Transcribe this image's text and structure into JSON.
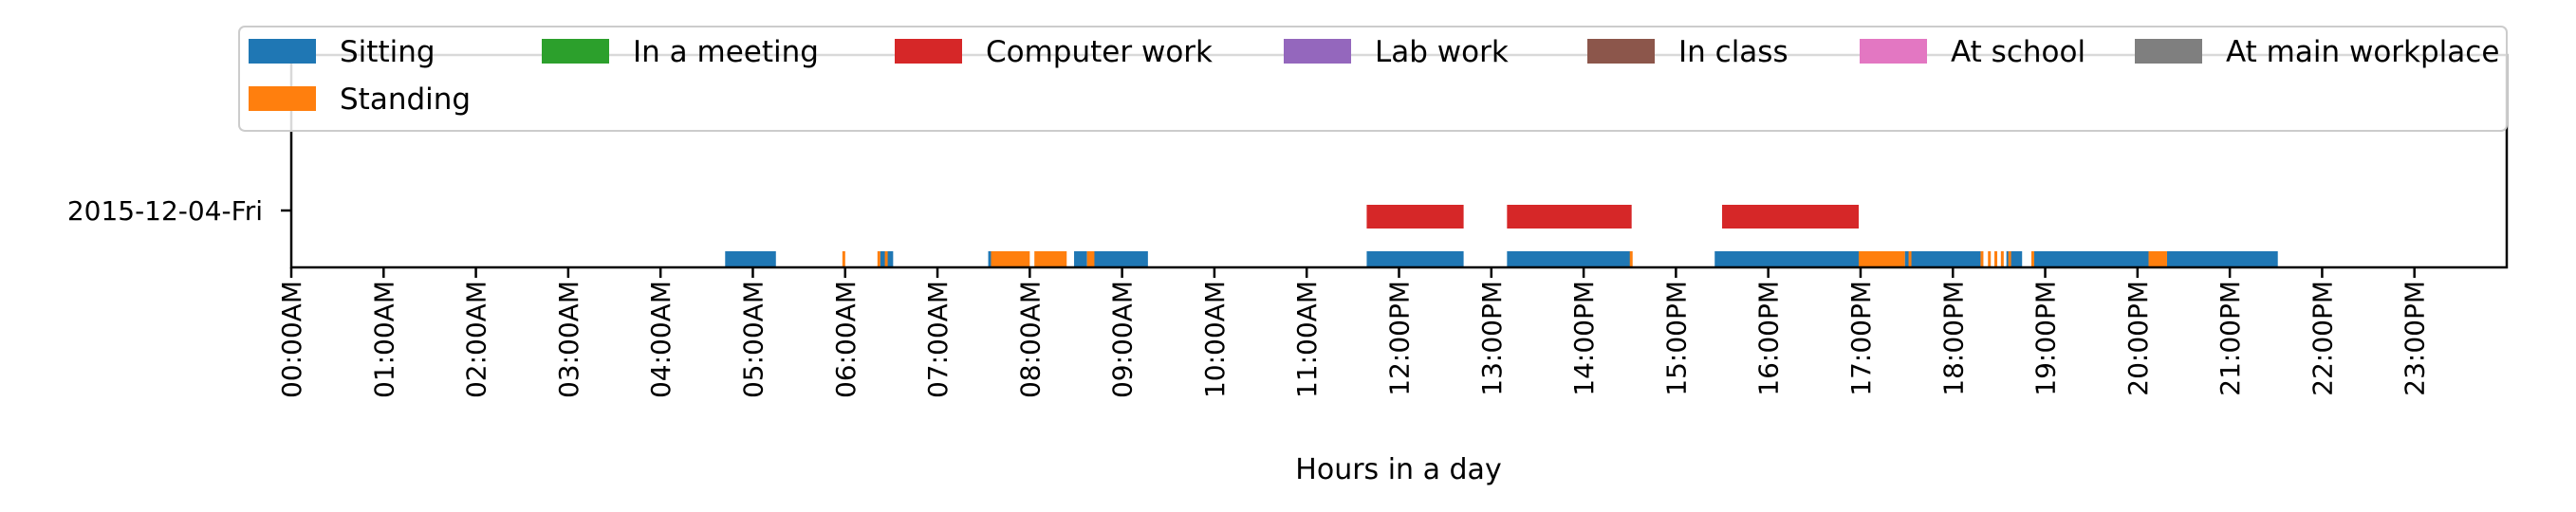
{
  "chart_data": {
    "type": "bar",
    "xlabel": "Hours in a day",
    "ylabel": "",
    "xlim": [
      0,
      24
    ],
    "x_ticks": [
      "00:00AM",
      "01:00AM",
      "02:00AM",
      "03:00AM",
      "04:00AM",
      "05:00AM",
      "06:00AM",
      "07:00AM",
      "08:00AM",
      "09:00AM",
      "10:00AM",
      "11:00AM",
      "12:00PM",
      "13:00PM",
      "14:00PM",
      "15:00PM",
      "16:00PM",
      "17:00PM",
      "18:00PM",
      "19:00PM",
      "20:00PM",
      "21:00PM",
      "22:00PM",
      "23:00PM"
    ],
    "y_categories": [
      "2015-12-04-Fri"
    ],
    "grid": false,
    "legend_placement": "top",
    "legend": [
      {
        "name": "Sitting",
        "color": "#1f77b4"
      },
      {
        "name": "In a meeting",
        "color": "#2ca02c"
      },
      {
        "name": "Computer work",
        "color": "#d62728"
      },
      {
        "name": "Lab work",
        "color": "#9467bd"
      },
      {
        "name": "In class",
        "color": "#8c564b"
      },
      {
        "name": "At school",
        "color": "#e377c2"
      },
      {
        "name": "At main workplace",
        "color": "#7f7f7f"
      },
      {
        "name": "Standing",
        "color": "#ff7f0e"
      }
    ],
    "series": [
      {
        "name": "Sitting",
        "row": 0,
        "intervals": [
          [
            4.7,
            5.25
          ],
          [
            6.38,
            6.52
          ],
          [
            7.55,
            7.58
          ],
          [
            8.48,
            8.62
          ],
          [
            8.65,
            9.28
          ],
          [
            11.65,
            12.7
          ],
          [
            13.17,
            14.52
          ],
          [
            15.42,
            16.98
          ],
          [
            17.48,
            18.3
          ],
          [
            18.58,
            18.75
          ],
          [
            18.88,
            20.12
          ],
          [
            20.32,
            21.52
          ]
        ]
      },
      {
        "name": "Standing",
        "row": 0,
        "intervals": [
          [
            5.97,
            6.0
          ],
          [
            6.35,
            6.38
          ],
          [
            6.43,
            6.45
          ],
          [
            7.58,
            8.0
          ],
          [
            8.05,
            8.4
          ],
          [
            8.62,
            8.7
          ],
          [
            14.5,
            14.53
          ],
          [
            16.98,
            17.48
          ],
          [
            17.52,
            17.55
          ],
          [
            18.3,
            18.33
          ],
          [
            18.38,
            18.41
          ],
          [
            18.45,
            18.48
          ],
          [
            18.52,
            18.55
          ],
          [
            18.6,
            18.62
          ],
          [
            18.85,
            18.88
          ],
          [
            20.12,
            20.32
          ]
        ]
      },
      {
        "name": "Computer work",
        "row": 1,
        "intervals": [
          [
            11.65,
            12.7
          ],
          [
            13.17,
            14.52
          ],
          [
            15.5,
            16.98
          ]
        ]
      },
      {
        "name": "In a meeting",
        "row": 1,
        "intervals": []
      },
      {
        "name": "Lab work",
        "row": 1,
        "intervals": []
      },
      {
        "name": "In class",
        "row": 1,
        "intervals": []
      },
      {
        "name": "At school",
        "row": 1,
        "intervals": []
      },
      {
        "name": "At main workplace",
        "row": 1,
        "intervals": []
      }
    ]
  }
}
